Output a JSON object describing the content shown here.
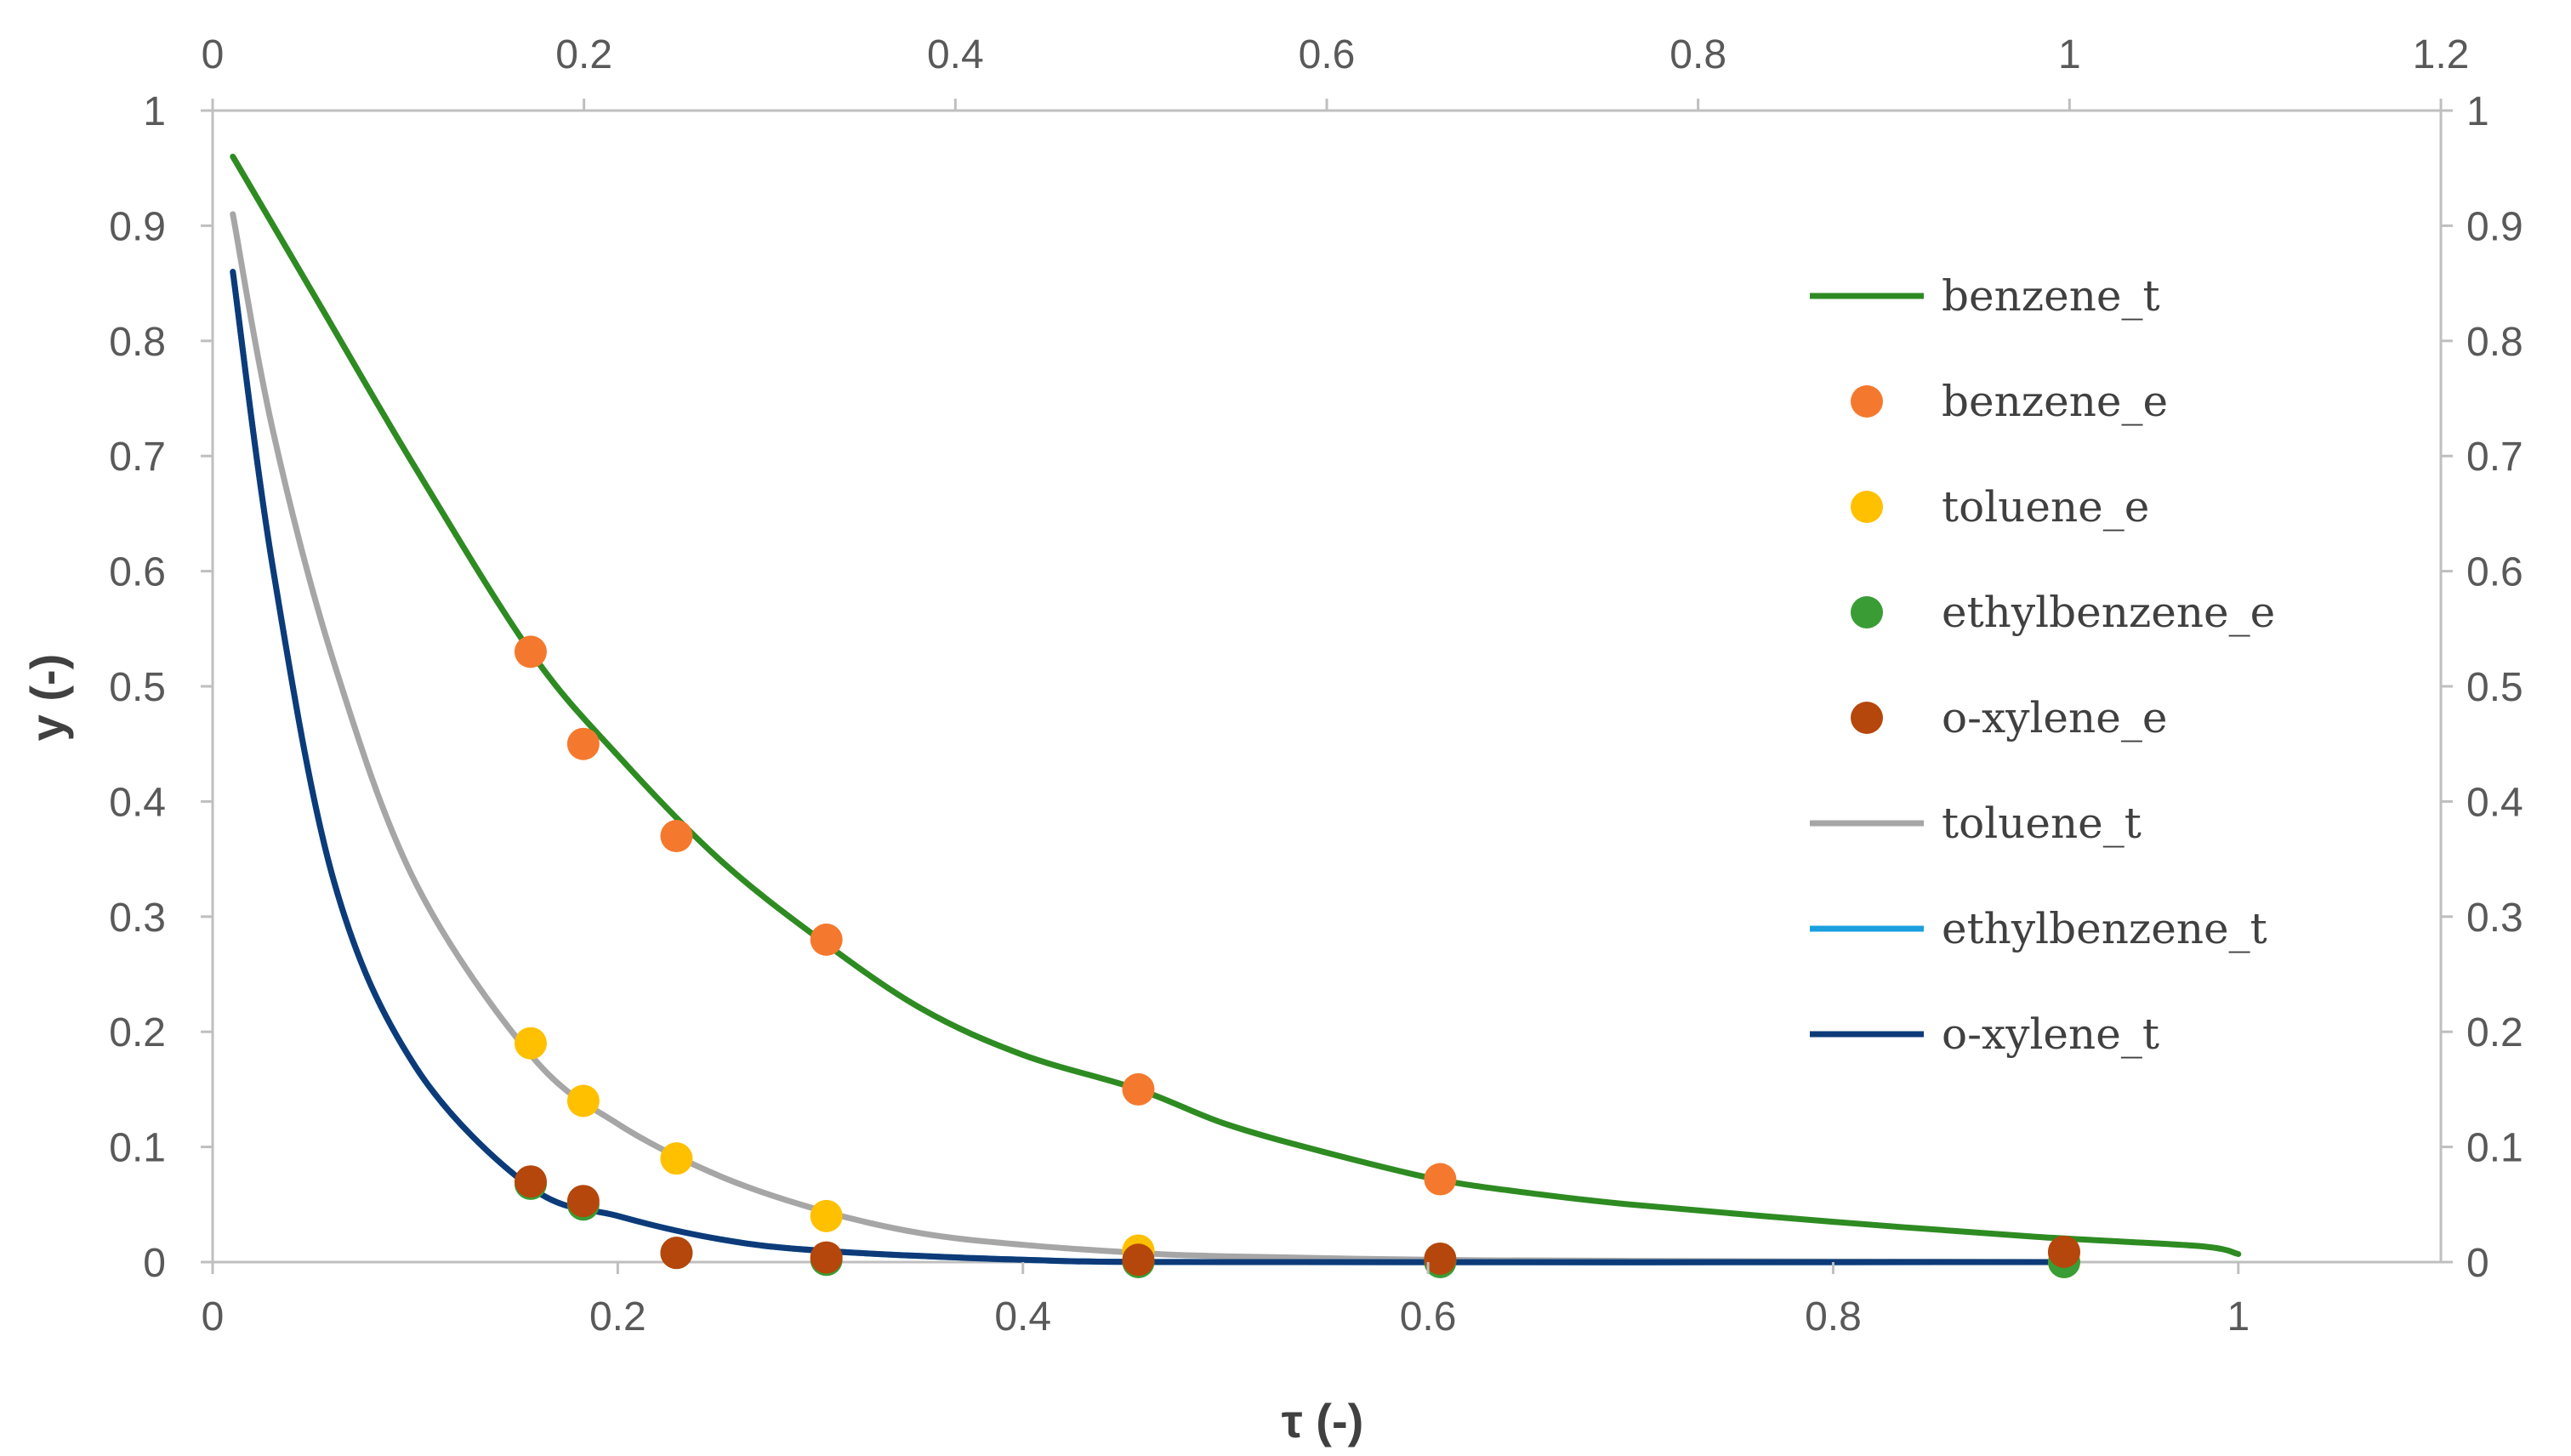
{
  "chart_data": {
    "type": "scatter",
    "title": "",
    "xlabel": "τ (-)",
    "ylabel": "y (-)",
    "bottom_x_axis": {
      "range": [
        0,
        1.1
      ],
      "ticks": [
        0,
        0.2,
        0.4,
        0.6,
        0.8,
        1
      ],
      "tick_labels": [
        "0",
        "0.2",
        "0.4",
        "0.6",
        "0.8",
        "1"
      ]
    },
    "top_x_axis": {
      "range": [
        0,
        1.2
      ],
      "ticks": [
        0,
        0.2,
        0.4,
        0.6,
        0.8,
        1,
        1.2
      ],
      "tick_labels": [
        "0",
        "0.2",
        "0.4",
        "0.6",
        "0.8",
        "1",
        "1.2"
      ]
    },
    "left_y_axis": {
      "range": [
        0,
        1
      ],
      "ticks": [
        0,
        0.1,
        0.2,
        0.3,
        0.4,
        0.5,
        0.6,
        0.7,
        0.8,
        0.9,
        1
      ],
      "tick_labels": [
        "0",
        "0.1",
        "0.2",
        "0.3",
        "0.4",
        "0.5",
        "0.6",
        "0.7",
        "0.8",
        "0.9",
        "1"
      ]
    },
    "right_y_axis": {
      "range": [
        0,
        1
      ],
      "ticks": [
        0,
        0.1,
        0.2,
        0.3,
        0.4,
        0.5,
        0.6,
        0.7,
        0.8,
        0.9,
        1
      ],
      "tick_labels": [
        "0",
        "0.1",
        "0.2",
        "0.3",
        "0.4",
        "0.5",
        "0.6",
        "0.7",
        "0.8",
        "0.9",
        "1"
      ]
    },
    "grid": false,
    "legend_position": "top-right",
    "series": [
      {
        "name": "benzene_t",
        "kind": "line",
        "color": "#2e8b22",
        "axis": "bottom",
        "x": [
          0.01,
          0.05,
          0.1,
          0.157,
          0.2,
          0.25,
          0.3,
          0.35,
          0.4,
          0.457,
          0.5,
          0.55,
          0.604,
          0.65,
          0.7,
          0.8,
          0.9,
          0.98,
          1.0
        ],
        "y": [
          0.96,
          0.84,
          0.69,
          0.53,
          0.44,
          0.35,
          0.28,
          0.22,
          0.18,
          0.15,
          0.12,
          0.095,
          0.072,
          0.06,
          0.05,
          0.035,
          0.022,
          0.014,
          0.007
        ]
      },
      {
        "name": "benzene_e",
        "kind": "marker",
        "color": "#f4792e",
        "axis": "bottom",
        "x": [
          0.157,
          0.183,
          0.229,
          0.303,
          0.457,
          0.606,
          0.914
        ],
        "y": [
          0.53,
          0.45,
          0.37,
          0.28,
          0.15,
          0.072,
          0.008
        ]
      },
      {
        "name": "toluene_e",
        "kind": "marker",
        "color": "#ffc000",
        "axis": "bottom",
        "x": [
          0.157,
          0.183,
          0.229,
          0.303,
          0.457,
          0.606,
          0.914
        ],
        "y": [
          0.19,
          0.14,
          0.09,
          0.04,
          0.01,
          0.002,
          0.0
        ]
      },
      {
        "name": "ethylbenzene_e",
        "kind": "marker",
        "color": "#3a9c35",
        "axis": "bottom",
        "x": [
          0.157,
          0.183,
          0.229,
          0.303,
          0.457,
          0.606,
          0.914
        ],
        "y": [
          0.068,
          0.05,
          0.008,
          0.002,
          0.0,
          0.0,
          0.0
        ]
      },
      {
        "name": "o-xylene_e",
        "kind": "marker",
        "color": "#b5470c",
        "axis": "bottom",
        "x": [
          0.157,
          0.183,
          0.229,
          0.303,
          0.457,
          0.606,
          0.914
        ],
        "y": [
          0.07,
          0.053,
          0.008,
          0.004,
          0.002,
          0.003,
          0.009
        ]
      },
      {
        "name": "toluene_t",
        "kind": "line",
        "color": "#a6a6a6",
        "axis": "bottom",
        "x": [
          0.01,
          0.03,
          0.06,
          0.1,
          0.157,
          0.2,
          0.25,
          0.3,
          0.35,
          0.4,
          0.457,
          0.5,
          0.6,
          0.7,
          0.914
        ],
        "y": [
          0.91,
          0.72,
          0.52,
          0.33,
          0.18,
          0.12,
          0.075,
          0.045,
          0.025,
          0.015,
          0.008,
          0.005,
          0.002,
          0.001,
          0.0
        ]
      },
      {
        "name": "ethylbenzene_t",
        "kind": "line",
        "color": "#1aa0de",
        "axis": "bottom",
        "x": [
          0.01,
          0.03,
          0.06,
          0.1,
          0.157,
          0.2,
          0.25,
          0.3,
          0.4,
          0.5,
          0.914
        ],
        "y": [
          0.86,
          0.6,
          0.33,
          0.17,
          0.065,
          0.04,
          0.02,
          0.01,
          0.002,
          0.0,
          0.0
        ]
      },
      {
        "name": "o-xylene_t",
        "kind": "line",
        "color": "#0d3b79",
        "axis": "bottom",
        "x": [
          0.01,
          0.03,
          0.06,
          0.1,
          0.157,
          0.2,
          0.25,
          0.3,
          0.4,
          0.5,
          0.914
        ],
        "y": [
          0.86,
          0.6,
          0.33,
          0.17,
          0.065,
          0.04,
          0.02,
          0.01,
          0.002,
          0.0,
          0.0
        ]
      }
    ]
  }
}
